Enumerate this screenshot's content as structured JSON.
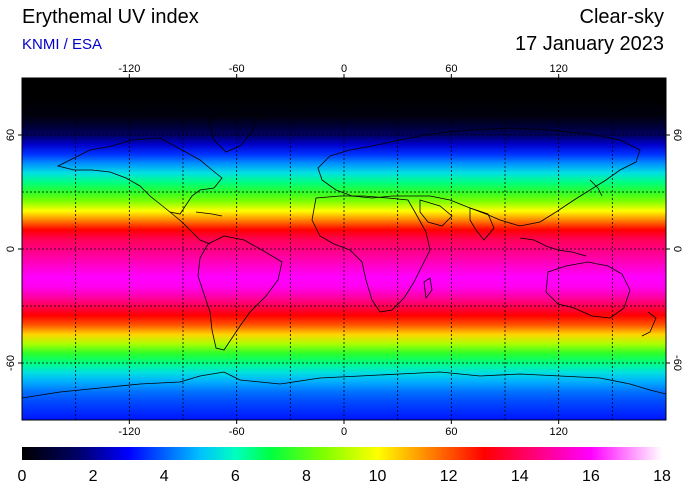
{
  "header": {
    "title": "Erythemal UV index",
    "credit": "KNMI / ESA",
    "mode": "Clear-sky",
    "date": "17 January 2023"
  },
  "map": {
    "projection": "equirectangular",
    "lon_range": [
      -180,
      180
    ],
    "lat_range": [
      -90,
      90
    ],
    "grid_style": "dotted",
    "lon_ticks": [
      "-120",
      "-60",
      "0",
      "60",
      "120"
    ],
    "lat_ticks": [
      "60",
      "0",
      "-60"
    ],
    "lon_tick_values": [
      -120,
      -60,
      0,
      60,
      120
    ],
    "lat_tick_values": [
      60,
      0,
      -60
    ],
    "lon_grid": [
      -150,
      -120,
      -90,
      -60,
      -30,
      0,
      30,
      60,
      90,
      120,
      150
    ],
    "lat_grid": [
      60,
      30,
      0,
      -30,
      -60
    ]
  },
  "chart_data": {
    "type": "heatmap",
    "variable": "Erythemal UV index (clear-sky)",
    "zonal_profile": {
      "lat": [
        90,
        80,
        70,
        65,
        60,
        55,
        50,
        45,
        40,
        35,
        30,
        25,
        20,
        15,
        10,
        5,
        0,
        -5,
        -10,
        -15,
        -20,
        -25,
        -30,
        -35,
        -40,
        -45,
        -50,
        -55,
        -60,
        -65,
        -70,
        -75,
        -80,
        -90
      ],
      "uv": [
        0,
        0,
        0.2,
        0.8,
        1.5,
        2.5,
        3.5,
        4.5,
        5.5,
        6.5,
        7.5,
        8.5,
        10,
        11.5,
        13,
        14,
        14.5,
        15,
        15.5,
        16,
        15.8,
        15,
        14,
        13,
        12,
        10.5,
        9,
        7.5,
        6.5,
        5.5,
        4.8,
        4.2,
        3.8,
        3.2
      ]
    },
    "colorbar": {
      "min": 0,
      "max": 18,
      "tick_labels": [
        "0",
        "2",
        "4",
        "6",
        "8",
        "10",
        "12",
        "14",
        "16",
        "18"
      ],
      "tick_values": [
        0,
        2,
        4,
        6,
        8,
        10,
        12,
        14,
        16,
        18
      ],
      "stops": [
        [
          0,
          "#000000"
        ],
        [
          1.5,
          "#000060"
        ],
        [
          3,
          "#0000ff"
        ],
        [
          5,
          "#00c0ff"
        ],
        [
          6,
          "#00ffc0"
        ],
        [
          7,
          "#00ff40"
        ],
        [
          8.5,
          "#80ff00"
        ],
        [
          10,
          "#ffff00"
        ],
        [
          11.5,
          "#ff8000"
        ],
        [
          13,
          "#ff0000"
        ],
        [
          14.5,
          "#ff0080"
        ],
        [
          16,
          "#ff00ff"
        ],
        [
          17,
          "#ff80ff"
        ],
        [
          18,
          "#ffffff"
        ]
      ]
    }
  },
  "colors": {
    "credit": "#0000cc",
    "coastline": "#000000",
    "grid": "#000000"
  }
}
